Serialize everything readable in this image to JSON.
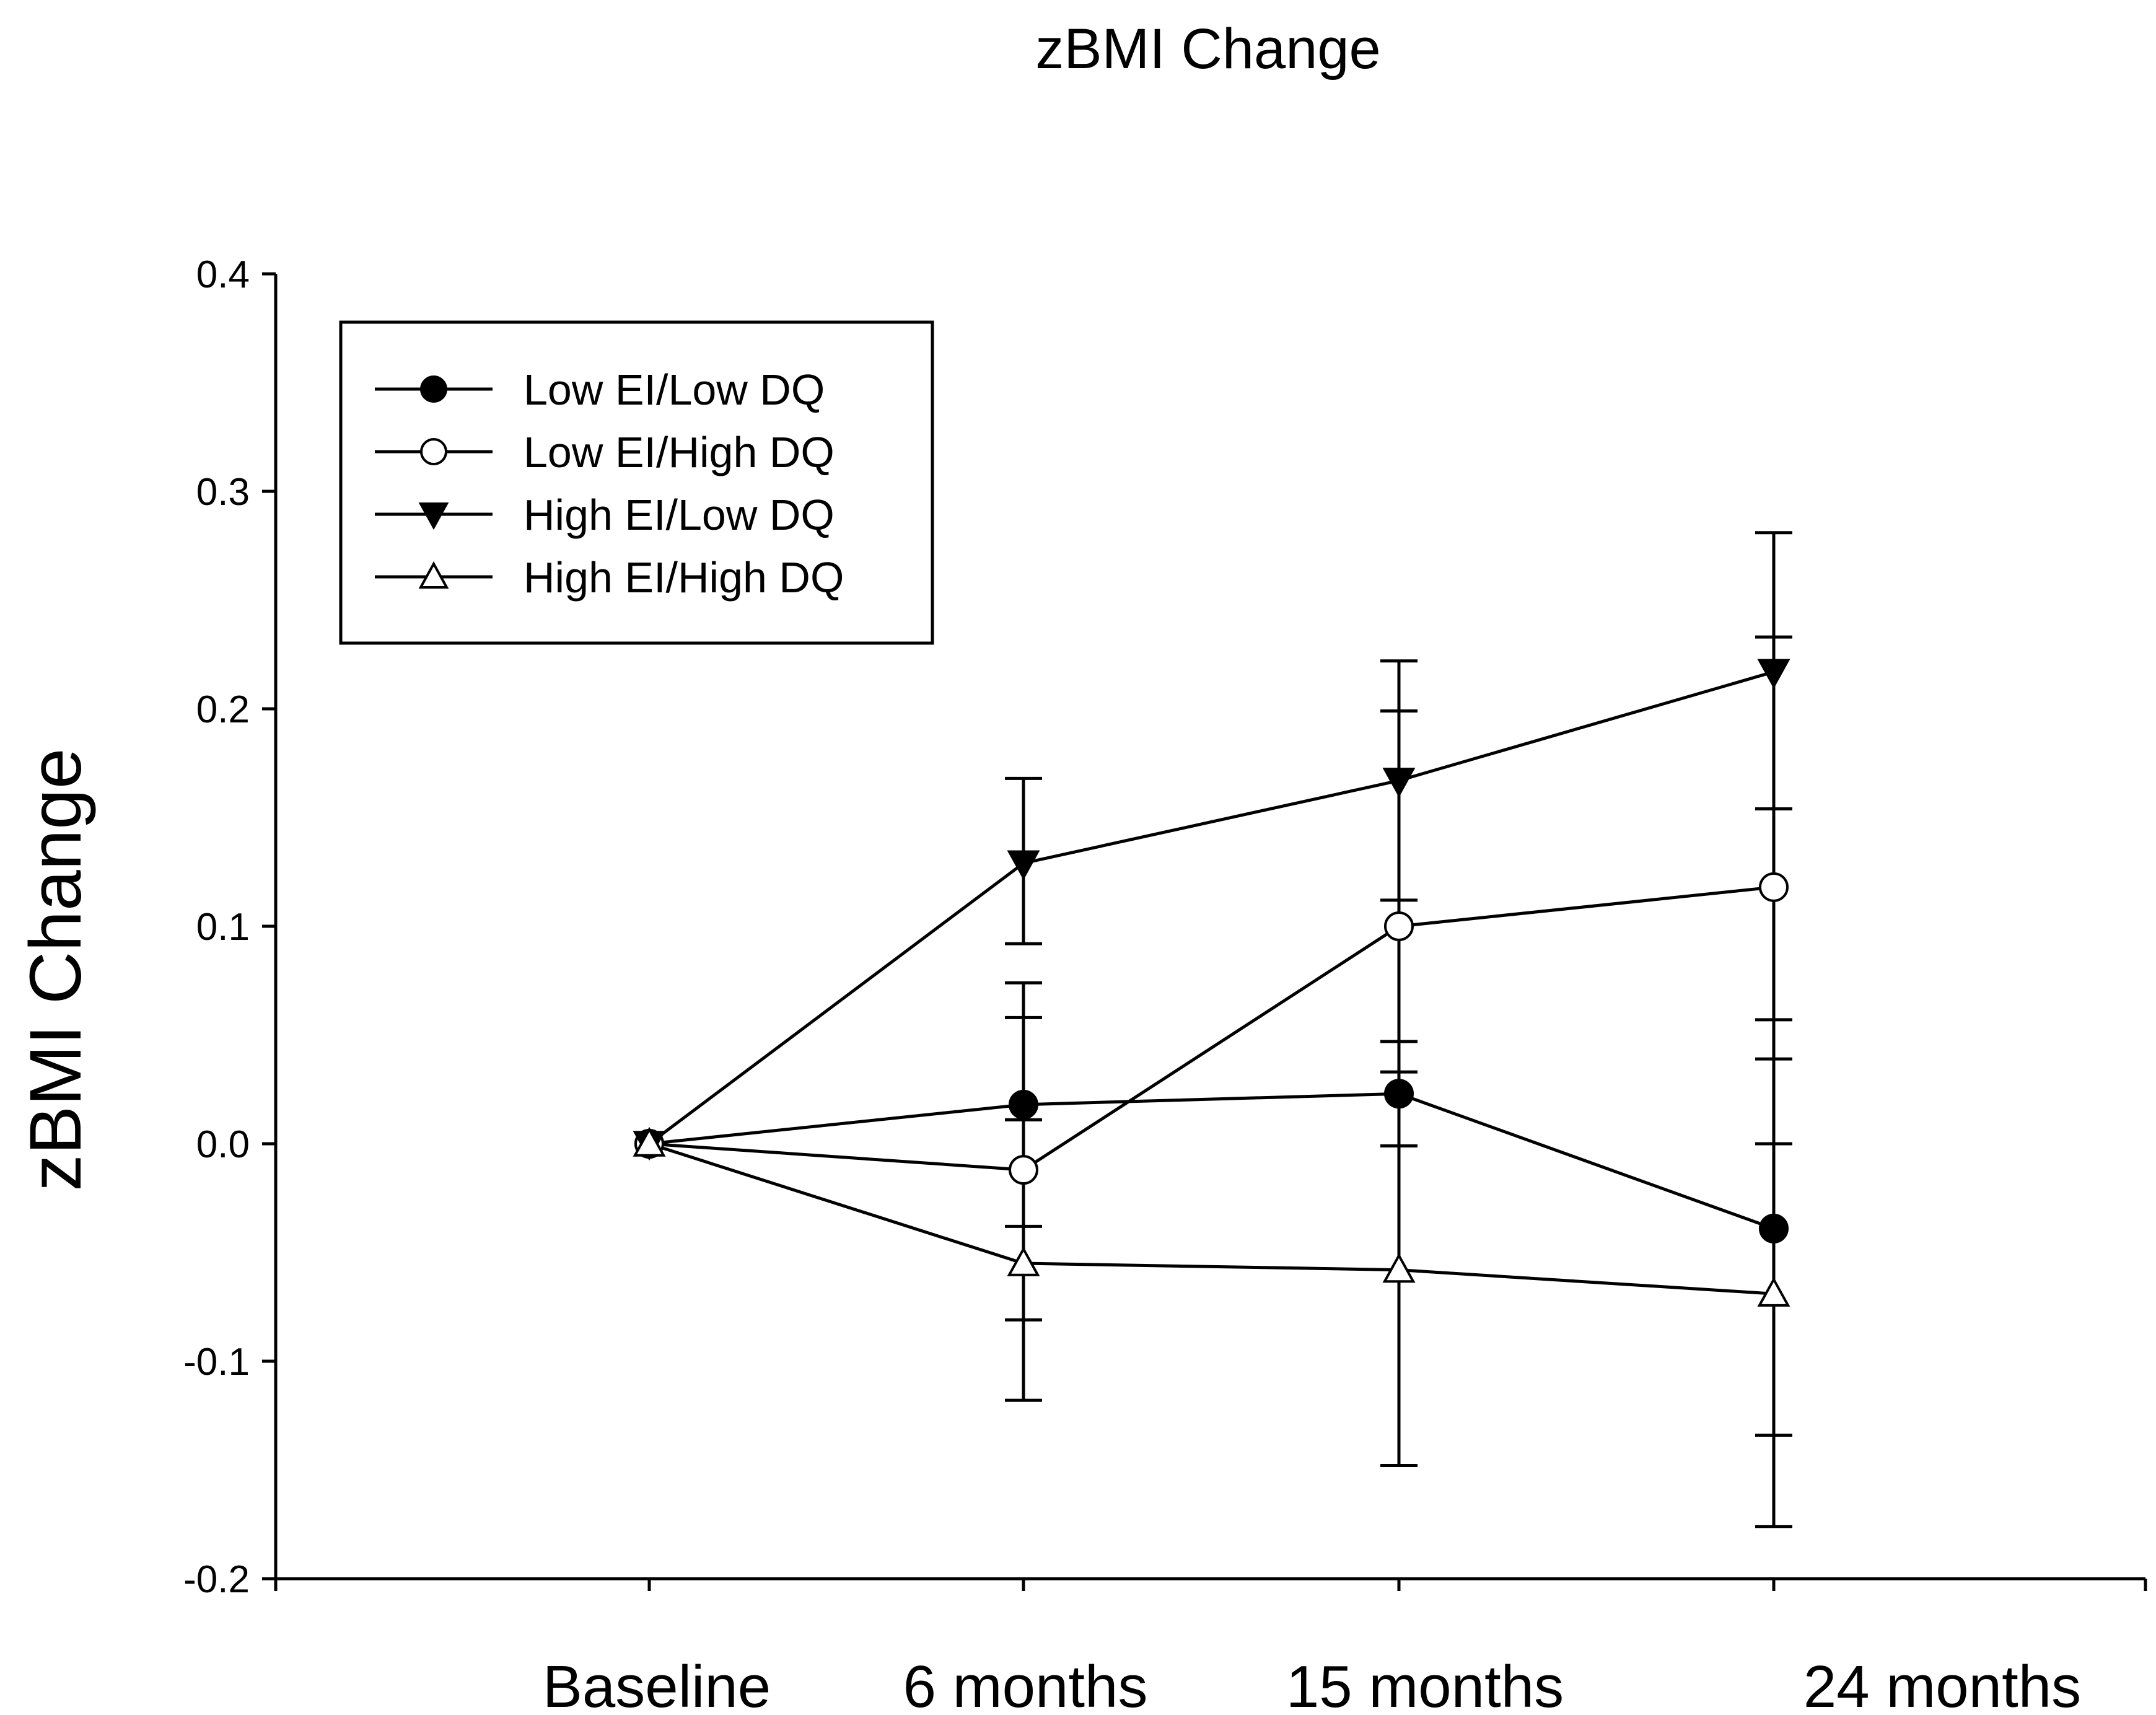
{
  "chart_data": {
    "type": "line",
    "title": "zBMI Change",
    "ylabel": "zBMI Change",
    "xlabel": "",
    "categories": [
      "Baseline",
      "6 months",
      "15 months",
      "24 months"
    ],
    "ylim": [
      -0.2,
      0.4
    ],
    "yticks": [
      "-0.2",
      "-0.1",
      "0.0",
      "0.1",
      "0.2",
      "0.3",
      "0.4"
    ],
    "legend_position": "top-left",
    "grid": false,
    "series": [
      {
        "name": "Low EI/Low DQ",
        "marker": "circle-filled",
        "values": [
          0.0,
          0.018,
          0.023,
          -0.039
        ],
        "error_low": [
          null,
          -0.038,
          -0.001,
          -0.134
        ],
        "error_high": [
          null,
          0.074,
          0.047,
          0.057
        ]
      },
      {
        "name": "Low EI/High DQ",
        "marker": "circle-open",
        "values": [
          0.0,
          -0.012,
          0.1,
          0.118
        ],
        "error_low": [
          null,
          -0.081,
          -0.148,
          0.0
        ],
        "error_high": [
          null,
          0.058,
          0.199,
          0.233
        ]
      },
      {
        "name": "High EI/Low DQ",
        "marker": "triangle-down-filled",
        "values": [
          0.0,
          0.129,
          0.167,
          0.217
        ],
        "error_low": [
          null,
          0.092,
          0.112,
          0.154
        ],
        "error_high": [
          null,
          0.168,
          0.222,
          0.281
        ]
      },
      {
        "name": "High EI/High DQ",
        "marker": "triangle-up-open",
        "values": [
          0.0,
          -0.055,
          -0.058,
          -0.069
        ],
        "error_low": [
          null,
          -0.118,
          null,
          -0.176
        ],
        "error_high": [
          null,
          0.011,
          0.033,
          0.039
        ]
      }
    ]
  }
}
